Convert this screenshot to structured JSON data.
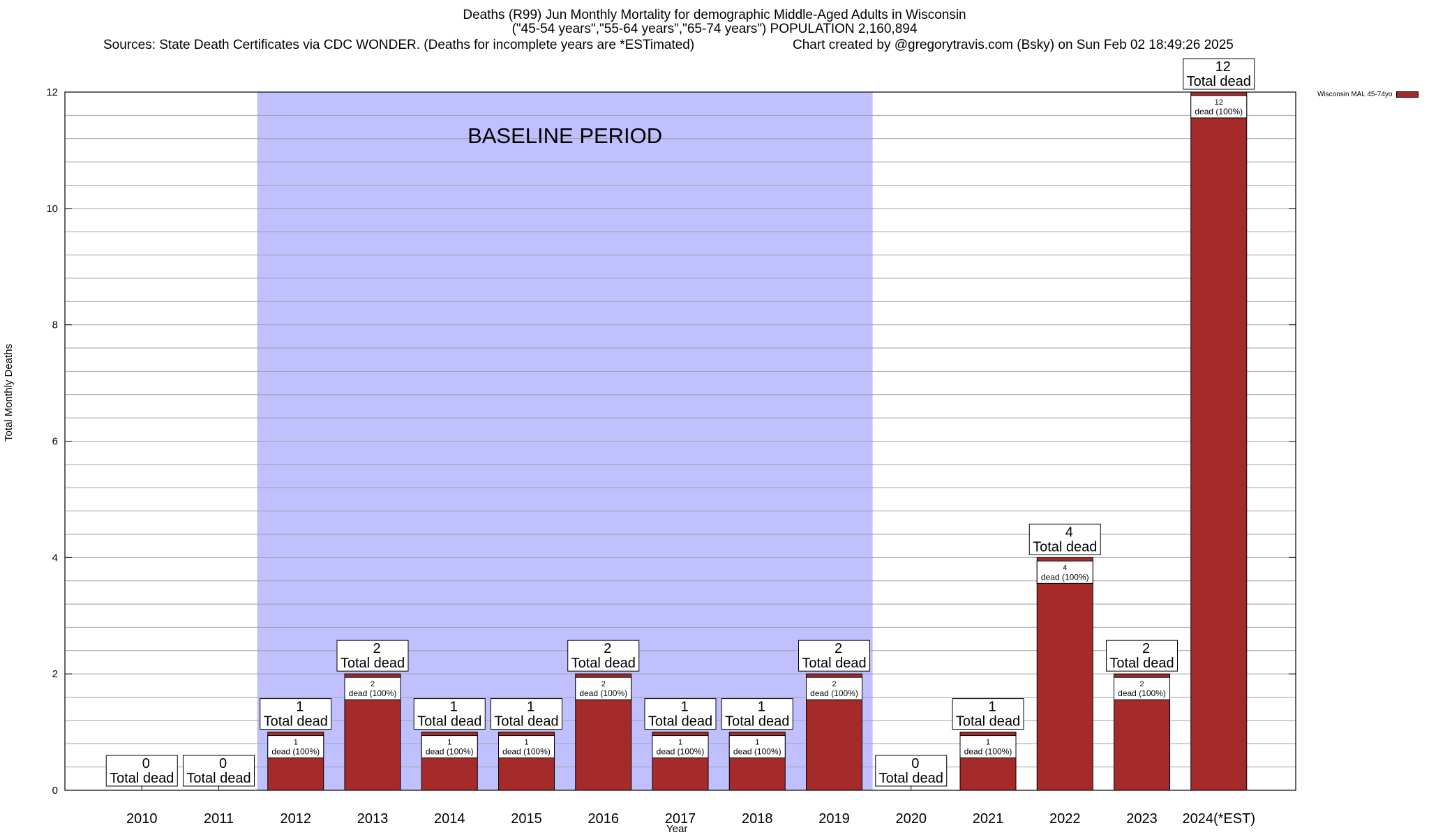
{
  "header": {
    "title_line1": "Deaths (R99) Jun Monthly Mortality for demographic Middle-Aged Adults in Wisconsin",
    "title_line2": "(\"45-54 years\",\"55-64 years\",\"65-74 years\") POPULATION 2,160,894",
    "sources": "Sources: State Death Certificates via CDC WONDER. (Deaths for incomplete years are *ESTimated)",
    "credit": "Chart created by @gregorytravis.com (Bsky) on Sun Feb 02 18:49:26 2025"
  },
  "chart_data": {
    "type": "bar",
    "categories": [
      "2010",
      "2011",
      "2012",
      "2013",
      "2014",
      "2015",
      "2016",
      "2017",
      "2018",
      "2019",
      "2020",
      "2021",
      "2022",
      "2023",
      "2024(*EST)"
    ],
    "series": [
      {
        "name": "Wisconsin MAL 45-74yo",
        "values": [
          0,
          0,
          1,
          2,
          1,
          1,
          2,
          1,
          1,
          2,
          0,
          1,
          4,
          2,
          12
        ],
        "color": "#a52a2a"
      }
    ],
    "total_label": "Total dead",
    "inner_label": "dead (100%)",
    "baseline": {
      "label": "BASELINE PERIOD",
      "from": "2012",
      "to": "2019",
      "color": "#c0c0ff"
    },
    "xlabel": "Year",
    "ylabel": "Total Monthly Deaths",
    "ylim": [
      0,
      12
    ],
    "yticks": [
      0,
      2,
      4,
      6,
      8,
      10,
      12
    ],
    "grid": true,
    "legend_position": "top-right"
  }
}
